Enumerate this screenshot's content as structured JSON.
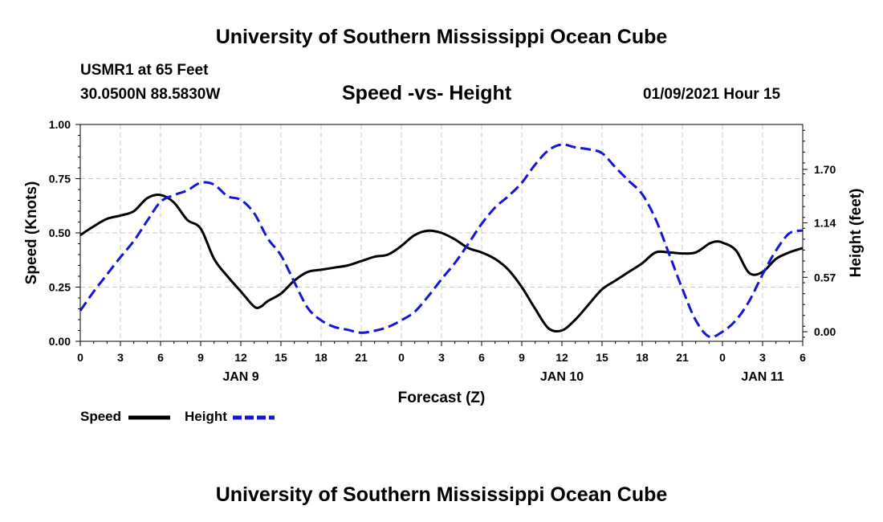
{
  "page": {
    "title_top": "University of Southern Mississippi Ocean Cube",
    "title_bottom": "University of Southern Mississippi Ocean Cube",
    "station": "USMR1 at 65 Feet",
    "coords": "30.0500N 88.5830W",
    "datetime": "01/09/2021 Hour 15",
    "colors": {
      "speed": "#000000",
      "height": "#1515d8",
      "grid": "#c8c8c8"
    }
  },
  "chart_data": {
    "type": "line",
    "title": "Speed -vs- Height",
    "xlabel": "Forecast (Z)",
    "ylabel": "Speed (Knots)",
    "y2label": "Height (feet)",
    "xlim": [
      0,
      54
    ],
    "ylim": [
      0,
      1.0
    ],
    "y2lim": [
      -0.1,
      2.17
    ],
    "x_ticks": [
      0,
      3,
      6,
      9,
      12,
      15,
      18,
      21,
      24,
      27,
      30,
      33,
      36,
      39,
      42,
      45,
      48,
      51,
      54
    ],
    "x_tick_labels": [
      "0",
      "3",
      "6",
      "9",
      "12",
      "15",
      "18",
      "21",
      "0",
      "3",
      "6",
      "9",
      "12",
      "15",
      "18",
      "21",
      "0",
      "3",
      "6"
    ],
    "day_labels": [
      {
        "x": 12,
        "label": "JAN 9"
      },
      {
        "x": 36,
        "label": "JAN 10"
      },
      {
        "x": 51,
        "label": "JAN 11"
      }
    ],
    "y_ticks": [
      0,
      0.25,
      0.5,
      0.75,
      1.0
    ],
    "y_tick_labels": [
      "0.00",
      "0.25",
      "0.50",
      "0.75",
      "1.00"
    ],
    "y2_ticks": [
      0,
      0.57,
      1.14,
      1.7
    ],
    "y2_tick_labels": [
      "0.00",
      "0.57",
      "1.14",
      "1.70"
    ],
    "legend": [
      {
        "name": "Speed",
        "style": "solid"
      },
      {
        "name": "Height",
        "style": "dashed"
      }
    ],
    "series": [
      {
        "name": "Speed",
        "axis": "left",
        "style": "solid",
        "x": [
          0,
          1,
          2,
          3,
          4,
          5,
          6,
          7,
          8,
          9,
          10,
          11,
          12,
          13,
          13.5,
          14,
          15,
          16,
          17,
          18,
          19,
          20,
          21,
          22,
          23,
          24,
          25,
          26,
          27,
          28,
          29,
          30,
          31,
          32,
          33,
          34,
          35,
          36,
          37,
          38,
          39,
          40,
          41,
          42,
          43,
          44,
          45,
          46,
          47,
          47.5,
          48,
          49,
          50,
          51,
          52,
          53,
          54
        ],
        "values": [
          0.49,
          0.53,
          0.565,
          0.58,
          0.6,
          0.66,
          0.675,
          0.64,
          0.56,
          0.52,
          0.38,
          0.3,
          0.23,
          0.16,
          0.16,
          0.185,
          0.22,
          0.28,
          0.32,
          0.33,
          0.34,
          0.35,
          0.37,
          0.39,
          0.4,
          0.44,
          0.49,
          0.51,
          0.5,
          0.47,
          0.43,
          0.41,
          0.38,
          0.33,
          0.25,
          0.15,
          0.06,
          0.05,
          0.1,
          0.17,
          0.24,
          0.28,
          0.32,
          0.36,
          0.41,
          0.41,
          0.405,
          0.41,
          0.45,
          0.46,
          0.455,
          0.42,
          0.315,
          0.32,
          0.38,
          0.41,
          0.43
        ]
      },
      {
        "name": "Height",
        "axis": "right",
        "style": "dashed",
        "x": [
          0,
          1,
          2,
          3,
          4,
          5,
          6,
          7,
          8,
          9,
          10,
          11,
          12,
          13,
          14,
          15,
          16,
          17,
          18,
          19,
          20,
          21,
          22,
          23,
          24,
          25,
          26,
          27,
          28,
          29,
          30,
          31,
          32,
          33,
          34,
          35,
          36,
          37,
          38,
          39,
          40,
          41,
          42,
          43,
          44,
          45,
          46,
          47,
          48,
          49,
          50,
          51,
          52,
          53,
          54
        ],
        "values": [
          0.22,
          0.42,
          0.6,
          0.78,
          0.95,
          1.16,
          1.36,
          1.43,
          1.48,
          1.56,
          1.54,
          1.42,
          1.38,
          1.24,
          0.98,
          0.8,
          0.52,
          0.25,
          0.12,
          0.05,
          0.02,
          -0.01,
          0.01,
          0.05,
          0.12,
          0.21,
          0.37,
          0.55,
          0.72,
          0.92,
          1.13,
          1.3,
          1.42,
          1.56,
          1.75,
          1.9,
          1.96,
          1.93,
          1.91,
          1.87,
          1.72,
          1.58,
          1.44,
          1.18,
          0.82,
          0.45,
          0.12,
          -0.05,
          0.0,
          0.12,
          0.32,
          0.6,
          0.85,
          1.03,
          1.06
        ]
      }
    ]
  }
}
